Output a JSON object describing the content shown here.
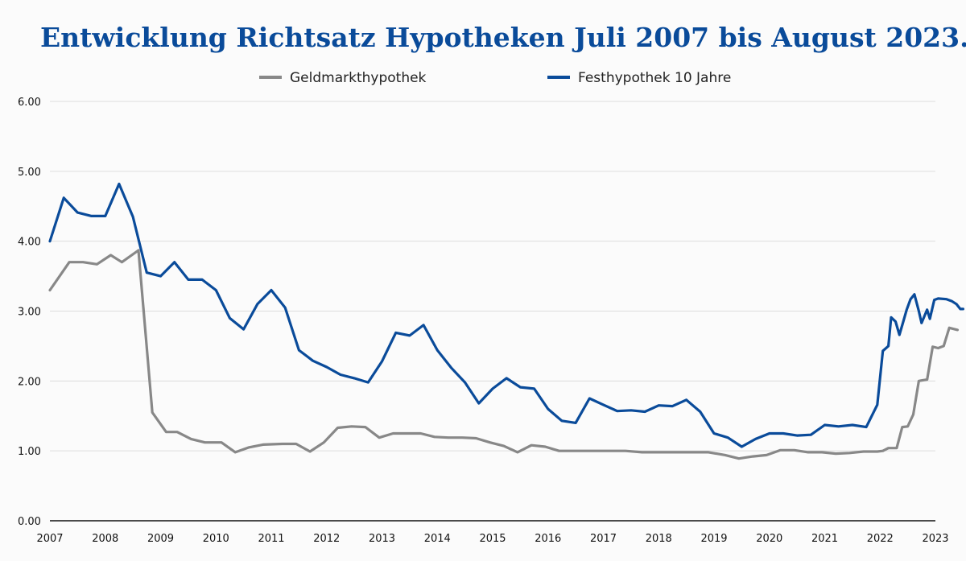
{
  "chart_data": {
    "type": "line",
    "title": "Entwicklung Richtsatz Hypotheken Juli 2007 bis August 2023.",
    "xlabel": "",
    "ylabel": "",
    "xlim": [
      2007.0,
      2023.0
    ],
    "ylim": [
      0,
      6
    ],
    "grid": true,
    "legend_position": "top-center",
    "y_ticks": [
      "0.00",
      "1.00",
      "2.00",
      "3.00",
      "4.00",
      "5.00",
      "6.00"
    ],
    "x_ticks": [
      "2007",
      "2008",
      "2009",
      "2010",
      "2011",
      "2012",
      "2013",
      "2014",
      "2015",
      "2016",
      "2017",
      "2018",
      "2019",
      "2020",
      "2021",
      "2022",
      "2023"
    ],
    "series": [
      {
        "name": "Geldmarkthypothek",
        "color": "#888888",
        "points": [
          [
            2007.0,
            3.3
          ],
          [
            2007.35,
            3.7
          ],
          [
            2007.6,
            3.7
          ],
          [
            2007.85,
            3.67
          ],
          [
            2008.1,
            3.8
          ],
          [
            2008.3,
            3.7
          ],
          [
            2008.6,
            3.87
          ],
          [
            2008.85,
            1.55
          ],
          [
            2009.1,
            1.27
          ],
          [
            2009.3,
            1.27
          ],
          [
            2009.55,
            1.17
          ],
          [
            2009.8,
            1.12
          ],
          [
            2010.1,
            1.12
          ],
          [
            2010.35,
            0.98
          ],
          [
            2010.6,
            1.05
          ],
          [
            2010.85,
            1.09
          ],
          [
            2011.2,
            1.1
          ],
          [
            2011.45,
            1.1
          ],
          [
            2011.7,
            0.99
          ],
          [
            2011.95,
            1.12
          ],
          [
            2012.2,
            1.33
          ],
          [
            2012.45,
            1.35
          ],
          [
            2012.7,
            1.34
          ],
          [
            2012.95,
            1.19
          ],
          [
            2013.2,
            1.25
          ],
          [
            2013.45,
            1.25
          ],
          [
            2013.7,
            1.25
          ],
          [
            2013.95,
            1.2
          ],
          [
            2014.2,
            1.19
          ],
          [
            2014.45,
            1.19
          ],
          [
            2014.7,
            1.18
          ],
          [
            2014.95,
            1.12
          ],
          [
            2015.2,
            1.07
          ],
          [
            2015.45,
            0.98
          ],
          [
            2015.7,
            1.08
          ],
          [
            2015.95,
            1.06
          ],
          [
            2016.2,
            1.0
          ],
          [
            2016.5,
            1.0
          ],
          [
            2016.8,
            1.0
          ],
          [
            2017.1,
            1.0
          ],
          [
            2017.4,
            1.0
          ],
          [
            2017.7,
            0.98
          ],
          [
            2018.0,
            0.98
          ],
          [
            2018.3,
            0.98
          ],
          [
            2018.6,
            0.98
          ],
          [
            2018.9,
            0.98
          ],
          [
            2019.2,
            0.94
          ],
          [
            2019.45,
            0.89
          ],
          [
            2019.7,
            0.92
          ],
          [
            2019.95,
            0.94
          ],
          [
            2020.2,
            1.01
          ],
          [
            2020.45,
            1.01
          ],
          [
            2020.7,
            0.98
          ],
          [
            2020.95,
            0.98
          ],
          [
            2021.2,
            0.96
          ],
          [
            2021.45,
            0.97
          ],
          [
            2021.7,
            0.99
          ],
          [
            2021.95,
            0.99
          ],
          [
            2022.05,
            1.0
          ],
          [
            2022.15,
            1.04
          ],
          [
            2022.3,
            1.04
          ],
          [
            2022.4,
            1.34
          ],
          [
            2022.5,
            1.35
          ],
          [
            2022.6,
            1.52
          ],
          [
            2022.7,
            2.0
          ],
          [
            2022.85,
            2.02
          ],
          [
            2022.95,
            2.49
          ],
          [
            2023.05,
            2.47
          ],
          [
            2023.15,
            2.5
          ],
          [
            2023.25,
            2.76
          ],
          [
            2023.4,
            2.73
          ]
        ]
      },
      {
        "name": "Festhypothek 10 Jahre",
        "color": "#0a4b9a",
        "points": [
          [
            2007.0,
            4.0
          ],
          [
            2007.25,
            4.62
          ],
          [
            2007.5,
            4.41
          ],
          [
            2007.75,
            4.36
          ],
          [
            2008.0,
            4.36
          ],
          [
            2008.25,
            4.82
          ],
          [
            2008.5,
            4.35
          ],
          [
            2008.75,
            3.55
          ],
          [
            2009.0,
            3.5
          ],
          [
            2009.25,
            3.7
          ],
          [
            2009.5,
            3.45
          ],
          [
            2009.75,
            3.45
          ],
          [
            2010.0,
            3.3
          ],
          [
            2010.25,
            2.9
          ],
          [
            2010.5,
            2.74
          ],
          [
            2010.75,
            3.1
          ],
          [
            2011.0,
            3.3
          ],
          [
            2011.25,
            3.05
          ],
          [
            2011.5,
            2.44
          ],
          [
            2011.75,
            2.29
          ],
          [
            2012.0,
            2.2
          ],
          [
            2012.25,
            2.09
          ],
          [
            2012.5,
            2.04
          ],
          [
            2012.75,
            1.98
          ],
          [
            2013.0,
            2.28
          ],
          [
            2013.25,
            2.69
          ],
          [
            2013.5,
            2.65
          ],
          [
            2013.75,
            2.8
          ],
          [
            2014.0,
            2.44
          ],
          [
            2014.25,
            2.19
          ],
          [
            2014.5,
            1.98
          ],
          [
            2014.75,
            1.68
          ],
          [
            2015.0,
            1.89
          ],
          [
            2015.25,
            2.04
          ],
          [
            2015.5,
            1.91
          ],
          [
            2015.75,
            1.89
          ],
          [
            2016.0,
            1.6
          ],
          [
            2016.25,
            1.43
          ],
          [
            2016.5,
            1.4
          ],
          [
            2016.75,
            1.75
          ],
          [
            2017.0,
            1.66
          ],
          [
            2017.25,
            1.57
          ],
          [
            2017.5,
            1.58
          ],
          [
            2017.75,
            1.56
          ],
          [
            2018.0,
            1.65
          ],
          [
            2018.25,
            1.64
          ],
          [
            2018.5,
            1.73
          ],
          [
            2018.75,
            1.56
          ],
          [
            2019.0,
            1.25
          ],
          [
            2019.25,
            1.19
          ],
          [
            2019.5,
            1.06
          ],
          [
            2019.75,
            1.17
          ],
          [
            2020.0,
            1.25
          ],
          [
            2020.25,
            1.25
          ],
          [
            2020.5,
            1.22
          ],
          [
            2020.75,
            1.23
          ],
          [
            2021.0,
            1.37
          ],
          [
            2021.25,
            1.35
          ],
          [
            2021.5,
            1.37
          ],
          [
            2021.75,
            1.34
          ],
          [
            2021.95,
            1.66
          ],
          [
            2022.05,
            2.43
          ],
          [
            2022.15,
            2.5
          ],
          [
            2022.2,
            2.91
          ],
          [
            2022.28,
            2.85
          ],
          [
            2022.35,
            2.66
          ],
          [
            2022.42,
            2.85
          ],
          [
            2022.48,
            3.02
          ],
          [
            2022.55,
            3.17
          ],
          [
            2022.62,
            3.24
          ],
          [
            2022.7,
            3.0
          ],
          [
            2022.75,
            2.83
          ],
          [
            2022.85,
            3.02
          ],
          [
            2022.9,
            2.89
          ],
          [
            2022.98,
            3.16
          ],
          [
            2023.05,
            3.18
          ],
          [
            2023.2,
            3.17
          ],
          [
            2023.3,
            3.14
          ],
          [
            2023.38,
            3.1
          ],
          [
            2023.45,
            3.03
          ],
          [
            2023.5,
            3.03
          ]
        ]
      }
    ]
  }
}
